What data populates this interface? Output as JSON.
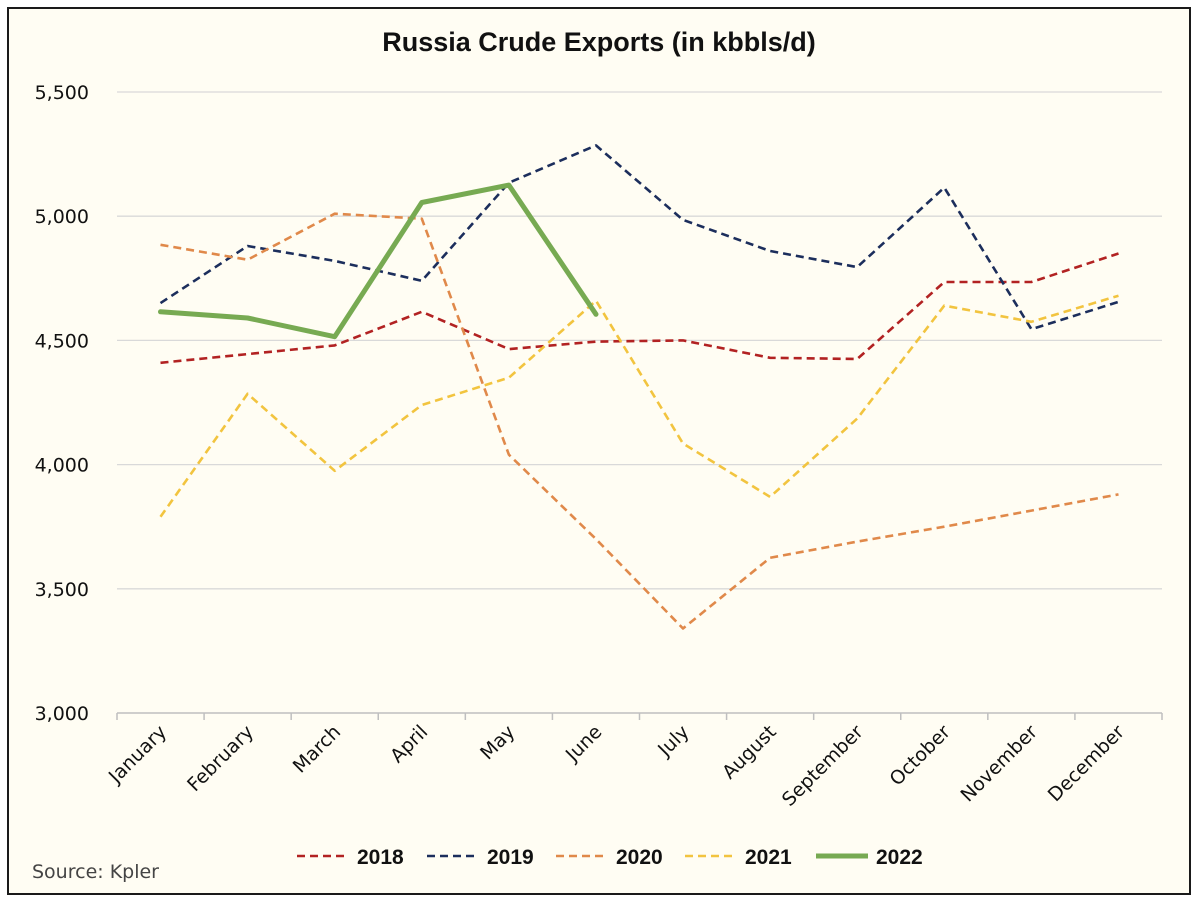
{
  "chart_data": {
    "type": "line",
    "title": "Russia Crude Exports (in kbbls/d)",
    "xlabel": "",
    "ylabel": "",
    "categories": [
      "January",
      "February",
      "March",
      "April",
      "May",
      "June",
      "July",
      "August",
      "September",
      "October",
      "November",
      "December"
    ],
    "ylim": [
      3000,
      5500
    ],
    "yticks": [
      3000,
      3500,
      4000,
      4500,
      5000,
      5500
    ],
    "ytick_labels": [
      "3,000",
      "3,500",
      "4,000",
      "4,500",
      "5,000",
      "5,500"
    ],
    "grid": true,
    "legend_position": "bottom",
    "series": [
      {
        "name": "2018",
        "color": "#b22222",
        "dash": "dashed",
        "values": [
          4410,
          4445,
          4480,
          4615,
          4465,
          4495,
          4500,
          4430,
          4425,
          4735,
          4735,
          4850
        ]
      },
      {
        "name": "2019",
        "color": "#1c2e5c",
        "dash": "dashed",
        "values": [
          4650,
          4880,
          4820,
          4740,
          5135,
          5285,
          4985,
          4860,
          4795,
          5115,
          4545,
          4655
        ]
      },
      {
        "name": "2020",
        "color": "#e0894a",
        "dash": "dashed",
        "values": [
          4885,
          4825,
          5010,
          4990,
          4040,
          3700,
          3340,
          3625,
          3690,
          3750,
          3815,
          3880
        ]
      },
      {
        "name": "2021",
        "color": "#f2c43f",
        "dash": "dashed",
        "values": [
          3790,
          4285,
          3975,
          4240,
          4350,
          4660,
          4085,
          3870,
          4185,
          4640,
          4575,
          4680
        ]
      },
      {
        "name": "2022",
        "color": "#77aa52",
        "dash": "solid",
        "values": [
          4615,
          4590,
          4515,
          5055,
          5125,
          4605,
          null,
          null,
          null,
          null,
          null,
          null
        ]
      }
    ],
    "source": "Source: Kpler"
  }
}
